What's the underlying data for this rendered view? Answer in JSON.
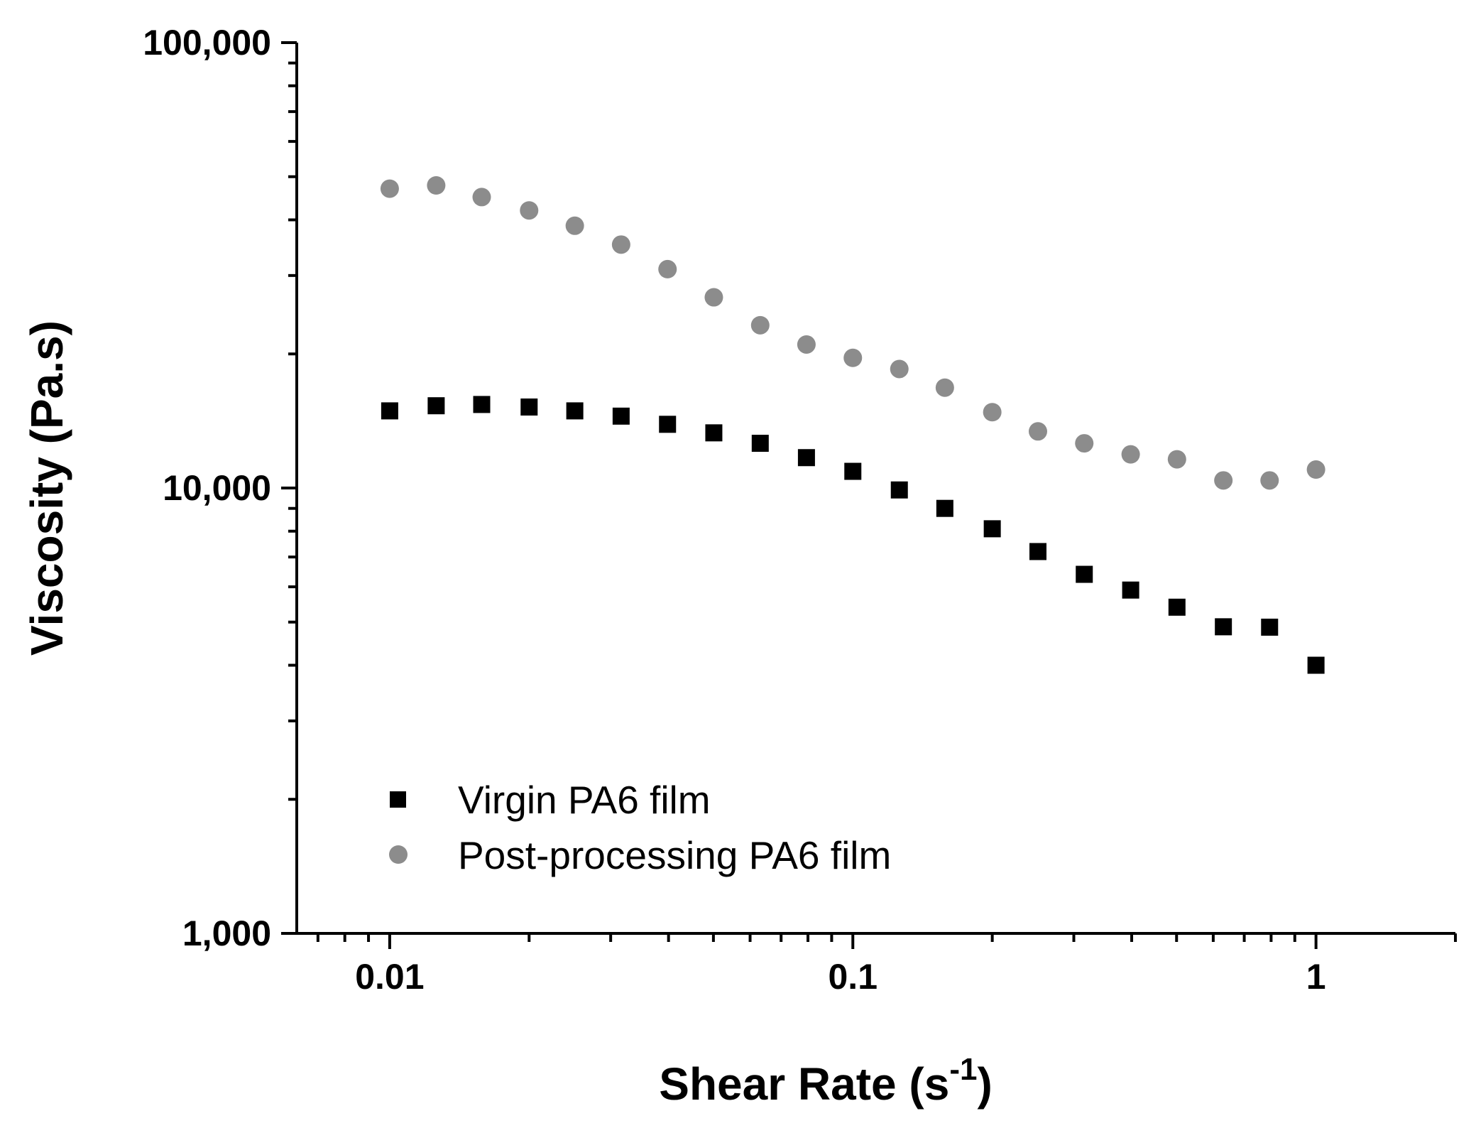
{
  "chart_data": {
    "type": "scatter",
    "title": "",
    "xlabel": "Shear Rate (s",
    "xlabel_superscript": "-1",
    "xlabel_suffix": ")",
    "ylabel": "Viscosity (Pa.s)",
    "xscale": "log",
    "yscale": "log",
    "xlim": [
      0.0063,
      2.0
    ],
    "ylim": [
      1000,
      100000
    ],
    "x_ticks": [
      {
        "value": 0.01,
        "label": "0.01"
      },
      {
        "value": 0.1,
        "label": "0.1"
      },
      {
        "value": 1,
        "label": "1"
      }
    ],
    "y_ticks": [
      {
        "value": 1000,
        "label": "1,000"
      },
      {
        "value": 10000,
        "label": "10,000"
      },
      {
        "value": 100000,
        "label": "100,000"
      }
    ],
    "legend_position": "bottom-left",
    "series": [
      {
        "name": "Virgin PA6 film",
        "marker": "square",
        "color": "#000000",
        "x": [
          0.01,
          0.0126,
          0.0158,
          0.02,
          0.0251,
          0.0316,
          0.0398,
          0.0501,
          0.0631,
          0.0794,
          0.1,
          0.126,
          0.158,
          0.2,
          0.251,
          0.316,
          0.398,
          0.501,
          0.631,
          0.794,
          1.0
        ],
        "values": [
          14900,
          15300,
          15400,
          15200,
          14900,
          14500,
          13900,
          13300,
          12600,
          11700,
          10900,
          9900,
          9000,
          8100,
          7200,
          6400,
          5900,
          5400,
          4880,
          4870,
          4000
        ]
      },
      {
        "name": "Post-processing PA6 film",
        "marker": "circle",
        "color": "#8c8c8c",
        "x": [
          0.01,
          0.0126,
          0.0158,
          0.02,
          0.0251,
          0.0316,
          0.0398,
          0.0501,
          0.0631,
          0.0794,
          0.1,
          0.126,
          0.158,
          0.2,
          0.251,
          0.316,
          0.398,
          0.501,
          0.631,
          0.794,
          1.0
        ],
        "values": [
          47000,
          47800,
          45000,
          42000,
          38800,
          35200,
          31000,
          26800,
          23200,
          21000,
          19600,
          18500,
          16800,
          14800,
          13400,
          12600,
          11900,
          11600,
          10400,
          10400,
          11000
        ]
      }
    ]
  }
}
